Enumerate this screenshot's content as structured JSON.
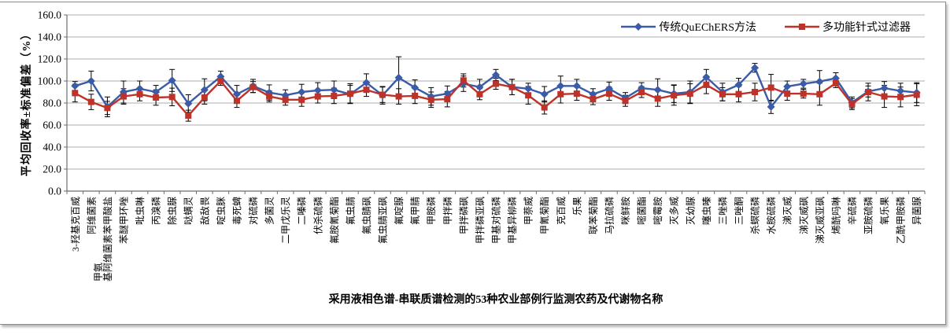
{
  "chart_data": {
    "type": "line",
    "title": "",
    "xlabel": "采用液相色谱-串联质谱检测的53种农业部例行监测农药及代谢物名称",
    "ylabel": "平均回收率±标准偏差（%）",
    "ylim": [
      0,
      160
    ],
    "ytick_step": 20,
    "ytick_labels": [
      "0.0",
      "20.0",
      "40.0",
      "60.0",
      "80.0",
      "100.0",
      "120.0",
      "140.0",
      "160.0"
    ],
    "grid": true,
    "grid_color": "#adadad",
    "axis_color": "#6e6e6e",
    "errorbar_color": "#000000",
    "legend_position": "top-right",
    "categories": [
      "3-羟基克百威",
      "阿维菌素",
      "甲氨基阿维菌素苯甲酸盐",
      "苯醚甲环唑",
      "吡虫啉",
      "丙溴磷",
      "除虫脲",
      "哒螨灵",
      "敌敌畏",
      "啶虫脒",
      "毒死蜱",
      "对硫磷",
      "多菌灵",
      "二甲戊乐灵",
      "二嗪磷",
      "伏杀硫磷",
      "氟胺氰菊酯",
      "氟虫腈",
      "氟虫腈砜",
      "氟虫腈亚砜",
      "氟啶脲",
      "氟甲腈",
      "甲胺磷",
      "甲拌磷",
      "甲拌磷砜",
      "甲拌磷亚砜",
      "甲基对硫磷",
      "甲基异柳磷",
      "甲萘威",
      "甲氰菊酯",
      "克百威",
      "乐果",
      "联苯菊酯",
      "马拉硫磷",
      "咪鲜胺",
      "嘧菌酯",
      "嘧霉胺",
      "灭多威",
      "灭幼脲",
      "噻虫嗪",
      "三唑磷",
      "三唑酮",
      "杀螟硫磷",
      "水胺硫磷",
      "涕灭威",
      "涕灭威砜",
      "涕灭威亚砜",
      "烯酰吗啉",
      "辛硫磷",
      "亚胺硫磷",
      "氧乐果",
      "乙酰甲胺磷",
      "异菌脲"
    ],
    "series": [
      {
        "name": "传统QuEChERS方法",
        "marker": "diamond",
        "color": "#3a5ba8",
        "values": [
          95.5,
          100,
          76.5,
          90,
          93,
          90,
          100.5,
          79.5,
          92,
          104,
          88,
          95.5,
          89.5,
          87,
          90,
          91.5,
          92,
          88,
          98.5,
          87,
          103,
          94,
          86,
          88.5,
          97.5,
          94.5,
          105.5,
          94.5,
          93,
          88,
          95.5,
          95.5,
          88,
          93,
          84.5,
          93.5,
          92,
          88.5,
          90,
          103.5,
          90,
          96.5,
          112,
          76.5,
          95,
          97.5,
          99.5,
          102.5,
          80.5,
          90.5,
          93.5,
          91,
          89.5
        ],
        "errors": [
          4,
          9,
          9,
          10,
          7,
          6,
          10,
          8,
          10,
          5,
          8,
          6,
          7,
          5,
          7,
          7,
          8,
          8,
          8,
          8,
          19,
          7,
          8,
          7,
          7,
          7,
          5,
          7,
          5,
          7,
          9,
          6,
          5,
          6,
          5,
          5,
          10,
          8,
          10,
          7,
          8,
          6,
          4,
          6,
          5,
          4,
          10,
          5,
          5,
          5,
          6,
          7,
          9
        ]
      },
      {
        "name": "多功能针式过滤器",
        "marker": "square",
        "color": "#bd3229",
        "values": [
          89,
          81,
          75.5,
          86,
          88,
          85,
          85.5,
          68.5,
          85,
          100,
          82,
          94.5,
          86,
          83,
          83,
          86,
          86.5,
          88.5,
          92,
          87.5,
          86,
          86.5,
          83,
          83.5,
          100.5,
          88,
          97.5,
          94.5,
          87,
          76,
          88,
          88.5,
          83.5,
          88.5,
          82,
          90,
          84,
          87,
          88.5,
          96.5,
          88,
          88,
          90,
          94,
          88.5,
          88.5,
          88,
          98,
          79,
          90,
          86,
          85.5,
          87.5
        ],
        "errors": [
          8,
          7,
          6,
          7,
          6,
          7,
          8,
          5,
          6,
          4,
          6,
          5,
          5,
          5,
          6,
          6,
          7,
          9,
          6,
          7,
          7,
          7,
          7,
          7,
          6,
          5,
          5,
          7,
          8,
          6,
          8,
          6,
          5,
          6,
          5,
          5,
          7,
          9,
          9,
          8,
          6,
          7,
          8,
          12,
          6,
          4,
          10,
          4,
          5,
          8,
          10,
          9,
          10
        ]
      }
    ]
  }
}
